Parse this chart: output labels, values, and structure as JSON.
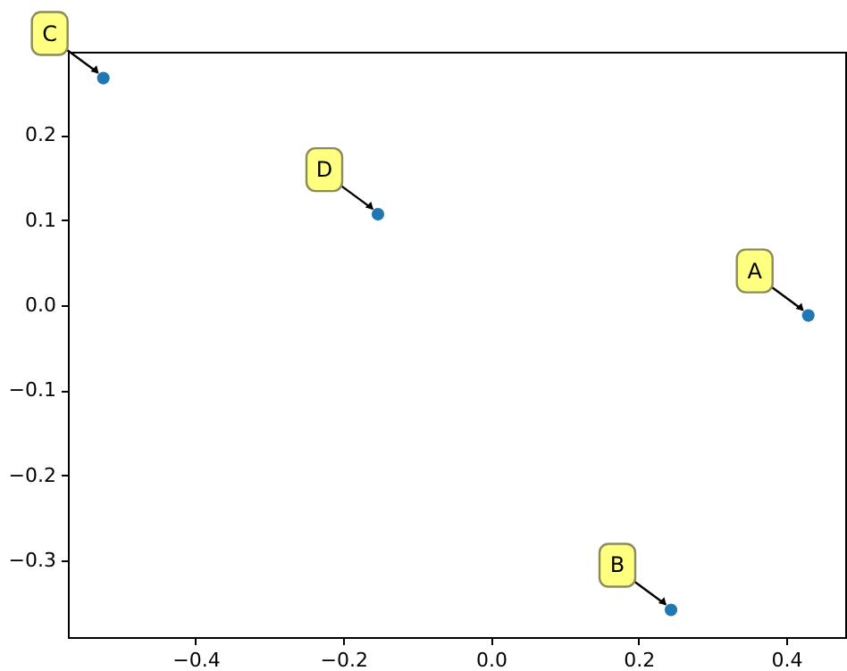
{
  "chart_data": {
    "type": "scatter",
    "x": [
      0.43,
      0.244,
      -0.525,
      -0.153
    ],
    "series": [
      {
        "color": "#1f77b4",
        "values": [
          -0.012,
          -0.358,
          0.267,
          0.107
        ]
      }
    ],
    "xlim": [
      -0.573,
      0.48
    ],
    "xticks": [
      -0.4,
      -0.2,
      {
        "value": 0,
        "label": "0.0"
      },
      0.2,
      0.4
    ],
    "ylim": [
      -0.39,
      0.298
    ],
    "yticks": [
      -0.3,
      -0.2,
      -0.1,
      {
        "value": 0,
        "label": "0.0"
      },
      0.1,
      0.2
    ],
    "marker": "circle",
    "grid": false,
    "annotations": [
      {
        "text": "A",
        "x": 0.43,
        "y": -0.012
      },
      {
        "text": "B",
        "x": 0.244,
        "y": -0.358
      },
      {
        "text": "C",
        "x": -0.525,
        "y": 0.267
      },
      {
        "text": "D",
        "x": -0.153,
        "y": 0.107
      }
    ]
  }
}
